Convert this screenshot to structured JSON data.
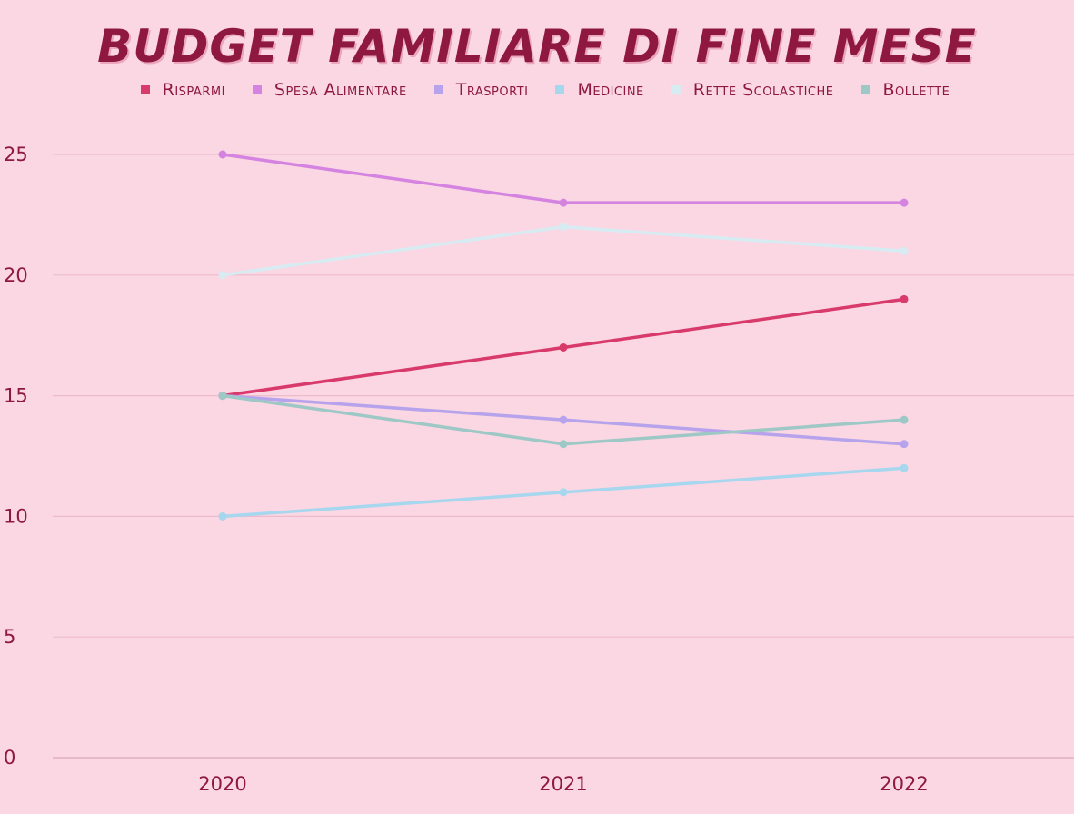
{
  "chart_data": {
    "type": "line",
    "title": "BUDGET FAMILIARE DI FINE MESE",
    "xlabel": "",
    "ylabel": "",
    "categories": [
      "2020",
      "2021",
      "2022"
    ],
    "ylim": [
      0,
      25
    ],
    "yticks": [
      0,
      5,
      10,
      15,
      20,
      25
    ],
    "grid": true,
    "legend_position": "top",
    "series": [
      {
        "name": "Risparmi",
        "values": [
          15,
          17,
          19
        ],
        "color": "#d93a6c"
      },
      {
        "name": "Spesa Alimentare",
        "values": [
          25,
          23,
          23
        ],
        "color": "#d484e0"
      },
      {
        "name": "Trasporti",
        "values": [
          15,
          14,
          13
        ],
        "color": "#b6a3ec"
      },
      {
        "name": "Medicine",
        "values": [
          10,
          11,
          12
        ],
        "color": "#a6d7ee"
      },
      {
        "name": "Rette Scolastiche",
        "values": [
          20,
          22,
          21
        ],
        "color": "#d6ecf2"
      },
      {
        "name": "Bollette",
        "values": [
          15,
          13,
          14
        ],
        "color": "#9ec8c6"
      }
    ]
  }
}
